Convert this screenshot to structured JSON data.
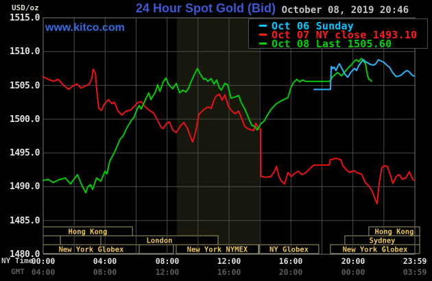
{
  "header": {
    "unit_label": "USD/oz",
    "title": "24 Hour Spot Gold (Bid)",
    "datetime": "October 08, 2019 20:46",
    "watermark": "www.kitco.com"
  },
  "legend": {
    "items": [
      {
        "label": "Oct 06 Sunday",
        "color": "#00c8ff"
      },
      {
        "label": "Oct 07 NY close 1493.10",
        "color": "#ff1a1a"
      },
      {
        "label": "Oct 08 Last 1505.60",
        "color": "#00d300"
      }
    ]
  },
  "axes": {
    "ny_row_label": "NY Time",
    "gmt_row_label": "GMT",
    "y_ticks": [
      "1515.0",
      "1510.0",
      "1505.0",
      "1500.0",
      "1495.0",
      "1490.0",
      "1485.0",
      "1480.0"
    ],
    "x_ticks": [
      {
        "t": 0,
        "ny": "00:00",
        "gmt": "04:00"
      },
      {
        "t": 4,
        "ny": "04:00",
        "gmt": "08:00"
      },
      {
        "t": 8,
        "ny": "08:00",
        "gmt": "12:00"
      },
      {
        "t": 12,
        "ny": "12:00",
        "gmt": "16:00"
      },
      {
        "t": 16,
        "ny": "16:00",
        "gmt": "20:00"
      },
      {
        "t": 20,
        "ny": "20:00",
        "gmt": "00:00"
      },
      {
        "t": 23.983,
        "ny": "23:59",
        "gmt": "03:59"
      }
    ]
  },
  "colors": {
    "grid": "#4c4c4c",
    "plot_border": "#787878",
    "band": "#17170d",
    "session_border": "#a09a68",
    "session_label": "#e8c44e",
    "session_fill": "#000000"
  },
  "sessions": {
    "rows": [
      [
        {
          "label": "Hong Kong",
          "start": 0,
          "end": 5.76
        },
        {
          "label": "Hong Kong",
          "start": 21.03,
          "end": 24.31
        }
      ],
      [
        {
          "label": "",
          "start": 0,
          "end": 1.11
        },
        {
          "label": "",
          "start": 1.11,
          "end": 3.72
        },
        {
          "label": "London",
          "start": 3.72,
          "end": 11.29
        },
        {
          "label": "Sydney",
          "start": 19.48,
          "end": 24.31
        }
      ],
      [
        {
          "label": "New York Globex",
          "start": 0,
          "end": 6.2
        },
        {
          "label": "",
          "start": 6.2,
          "end": 8.41
        },
        {
          "label": "New York NYMEX",
          "start": 8.59,
          "end": 13.9
        },
        {
          "label": "NY Globex",
          "start": 13.95,
          "end": 17.8
        },
        {
          "label": "New York Globex",
          "start": 18.55,
          "end": 24.31
        }
      ]
    ]
  },
  "chart_data": {
    "type": "line",
    "title": "24 Hour Spot Gold (Bid)",
    "x_unit": "hours, NY time",
    "x_range": [
      0,
      24
    ],
    "y_range": [
      1480,
      1515
    ],
    "y_tick_step": 5,
    "x_grid_step_hours": 2,
    "grid": true,
    "legend_position": "top-right",
    "nymex_floor_band_hours": [
      8.63,
      13.95
    ],
    "series": [
      {
        "name": "Oct 07",
        "ny_close": 1493.1,
        "color": "#ee1111",
        "points": [
          [
            0,
            1506.3
          ],
          [
            0.31,
            1505.9
          ],
          [
            0.66,
            1505.6
          ],
          [
            0.97,
            1505.9
          ],
          [
            1.28,
            1505.1
          ],
          [
            1.64,
            1504.4
          ],
          [
            1.9,
            1504.9
          ],
          [
            2.17,
            1505.2
          ],
          [
            2.44,
            1504.6
          ],
          [
            2.7,
            1504.9
          ],
          [
            2.97,
            1505.2
          ],
          [
            3.14,
            1506.0
          ],
          [
            3.23,
            1507.4
          ],
          [
            3.37,
            1506.8
          ],
          [
            3.45,
            1504.5
          ],
          [
            3.59,
            1501.6
          ],
          [
            3.76,
            1501.3
          ],
          [
            3.94,
            1502.2
          ],
          [
            4.21,
            1502.9
          ],
          [
            4.43,
            1502.3
          ],
          [
            4.6,
            1502.5
          ],
          [
            4.83,
            1501.2
          ],
          [
            5.09,
            1500.6
          ],
          [
            5.36,
            1501.2
          ],
          [
            5.62,
            1501.3
          ],
          [
            5.89,
            1501.9
          ],
          [
            6.07,
            1502.4
          ],
          [
            6.33,
            1502.6
          ],
          [
            6.6,
            1501.8
          ],
          [
            6.86,
            1501.3
          ],
          [
            7.13,
            1500.9
          ],
          [
            7.39,
            1499.8
          ],
          [
            7.62,
            1498.8
          ],
          [
            7.75,
            1498.6
          ],
          [
            7.97,
            1499.4
          ],
          [
            8.15,
            1499.6
          ],
          [
            8.37,
            1498.4
          ],
          [
            8.59,
            1498.0
          ],
          [
            8.86,
            1499.0
          ],
          [
            9.08,
            1499.5
          ],
          [
            9.3,
            1498.7
          ],
          [
            9.48,
            1497.6
          ],
          [
            9.65,
            1496.6
          ],
          [
            9.83,
            1498.0
          ],
          [
            10.05,
            1500.7
          ],
          [
            10.36,
            1501.4
          ],
          [
            10.63,
            1501.8
          ],
          [
            10.85,
            1501.6
          ],
          [
            11.03,
            1502.8
          ],
          [
            11.16,
            1503.4
          ],
          [
            11.38,
            1503.7
          ],
          [
            11.56,
            1502.8
          ],
          [
            11.73,
            1503.6
          ],
          [
            11.96,
            1501.9
          ],
          [
            12.18,
            1501.2
          ],
          [
            12.4,
            1500.8
          ],
          [
            12.62,
            1501.2
          ],
          [
            12.84,
            1500.0
          ],
          [
            13.02,
            1498.9
          ],
          [
            13.28,
            1498.5
          ],
          [
            13.59,
            1498.3
          ],
          [
            13.73,
            1499.4
          ],
          [
            13.9,
            1498.6
          ],
          [
            14.04,
            1498.5
          ],
          [
            14.06,
            1491.5
          ],
          [
            14.39,
            1491.4
          ],
          [
            14.7,
            1491.5
          ],
          [
            14.92,
            1492.2
          ],
          [
            15.06,
            1493.0
          ],
          [
            15.23,
            1491.5
          ],
          [
            15.36,
            1490.9
          ],
          [
            15.59,
            1490.4
          ],
          [
            15.81,
            1492.1
          ],
          [
            16.03,
            1491.5
          ],
          [
            16.25,
            1492.0
          ],
          [
            16.47,
            1492.3
          ],
          [
            16.69,
            1491.8
          ],
          [
            16.92,
            1492.0
          ],
          [
            17.14,
            1492.5
          ],
          [
            17.36,
            1493.0
          ],
          [
            17.49,
            1493.2
          ],
          [
            18.46,
            1493.2
          ],
          [
            18.55,
            1494.0
          ],
          [
            18.91,
            1494.2
          ],
          [
            19.22,
            1494.0
          ],
          [
            19.35,
            1493.1
          ],
          [
            19.57,
            1492.5
          ],
          [
            19.79,
            1492.1
          ],
          [
            20.06,
            1492.4
          ],
          [
            20.32,
            1492.0
          ],
          [
            20.54,
            1491.9
          ],
          [
            20.68,
            1491.3
          ],
          [
            20.81,
            1490.6
          ],
          [
            21.03,
            1490.1
          ],
          [
            21.25,
            1489.3
          ],
          [
            21.43,
            1488.2
          ],
          [
            21.56,
            1487.5
          ],
          [
            21.7,
            1490.6
          ],
          [
            21.87,
            1492.8
          ],
          [
            22.01,
            1493.1
          ],
          [
            22.23,
            1493.0
          ],
          [
            22.45,
            1491.5
          ],
          [
            22.58,
            1490.5
          ],
          [
            22.8,
            1491.5
          ],
          [
            22.98,
            1491.8
          ],
          [
            23.2,
            1491.1
          ],
          [
            23.42,
            1491.3
          ],
          [
            23.64,
            1492.2
          ],
          [
            23.86,
            1491.1
          ],
          [
            23.98,
            1490.9
          ]
        ]
      },
      {
        "name": "Oct 08",
        "last": 1505.6,
        "color": "#00cc00",
        "points": [
          [
            0,
            1490.9
          ],
          [
            0.31,
            1491.1
          ],
          [
            0.66,
            1490.6
          ],
          [
            0.97,
            1491.0
          ],
          [
            1.42,
            1491.3
          ],
          [
            1.77,
            1490.4
          ],
          [
            2.08,
            1491.4
          ],
          [
            2.21,
            1491.8
          ],
          [
            2.52,
            1490.1
          ],
          [
            2.75,
            1489.1
          ],
          [
            2.88,
            1490.0
          ],
          [
            3.06,
            1490.3
          ],
          [
            3.19,
            1489.6
          ],
          [
            3.45,
            1491.3
          ],
          [
            3.72,
            1490.8
          ],
          [
            3.99,
            1492.3
          ],
          [
            4.12,
            1491.9
          ],
          [
            4.3,
            1493.8
          ],
          [
            4.47,
            1494.5
          ],
          [
            4.6,
            1495.1
          ],
          [
            4.74,
            1495.8
          ],
          [
            4.96,
            1497.0
          ],
          [
            5.18,
            1497.6
          ],
          [
            5.36,
            1498.5
          ],
          [
            5.53,
            1499.2
          ],
          [
            5.71,
            1499.9
          ],
          [
            5.85,
            1500.2
          ],
          [
            6.07,
            1501.5
          ],
          [
            6.2,
            1502.0
          ],
          [
            6.33,
            1501.5
          ],
          [
            6.64,
            1503.1
          ],
          [
            6.82,
            1503.9
          ],
          [
            6.95,
            1502.9
          ],
          [
            7.26,
            1504.1
          ],
          [
            7.39,
            1505.1
          ],
          [
            7.53,
            1504.1
          ],
          [
            7.75,
            1505.5
          ],
          [
            7.93,
            1506.1
          ],
          [
            8.06,
            1505.3
          ],
          [
            8.19,
            1504.9
          ],
          [
            8.37,
            1504.5
          ],
          [
            8.59,
            1505.3
          ],
          [
            8.81,
            1503.9
          ],
          [
            9.03,
            1504.3
          ],
          [
            9.21,
            1504.0
          ],
          [
            9.39,
            1504.6
          ],
          [
            9.56,
            1505.6
          ],
          [
            9.74,
            1506.5
          ],
          [
            9.96,
            1507.5
          ],
          [
            10.14,
            1506.7
          ],
          [
            10.36,
            1505.9
          ],
          [
            10.49,
            1506.0
          ],
          [
            10.63,
            1505.6
          ],
          [
            10.85,
            1506.0
          ],
          [
            11.03,
            1505.2
          ],
          [
            11.2,
            1505.8
          ],
          [
            11.38,
            1504.6
          ],
          [
            11.51,
            1504.3
          ],
          [
            11.73,
            1505.3
          ],
          [
            11.91,
            1505.1
          ],
          [
            12.13,
            1503.1
          ],
          [
            12.4,
            1503.3
          ],
          [
            12.62,
            1503.5
          ],
          [
            12.8,
            1502.4
          ],
          [
            13.02,
            1501.5
          ],
          [
            13.24,
            1500.3
          ],
          [
            13.46,
            1499.1
          ],
          [
            13.68,
            1498.9
          ],
          [
            13.82,
            1498.4
          ],
          [
            14.04,
            1499.3
          ],
          [
            14.26,
            1499.7
          ],
          [
            14.48,
            1500.6
          ],
          [
            14.7,
            1501.4
          ],
          [
            15.01,
            1502.2
          ],
          [
            15.28,
            1502.6
          ],
          [
            15.54,
            1502.9
          ],
          [
            15.81,
            1503.2
          ],
          [
            15.99,
            1504.6
          ],
          [
            16.16,
            1505.4
          ],
          [
            16.38,
            1505.9
          ],
          [
            16.56,
            1505.5
          ],
          [
            16.74,
            1505.8
          ],
          [
            16.92,
            1505.6
          ],
          [
            17.27,
            1505.6
          ],
          [
            18.46,
            1505.6
          ],
          [
            18.55,
            1505.7
          ],
          [
            18.69,
            1506.3
          ],
          [
            18.86,
            1506.6
          ],
          [
            19,
            1506.9
          ],
          [
            19.13,
            1506.7
          ],
          [
            19.26,
            1506.4
          ],
          [
            19.44,
            1506.9
          ],
          [
            19.66,
            1507.5
          ],
          [
            19.88,
            1508.0
          ],
          [
            20.1,
            1508.6
          ],
          [
            20.24,
            1508.8
          ],
          [
            20.37,
            1508.5
          ],
          [
            20.55,
            1509.0
          ],
          [
            20.68,
            1508.6
          ],
          [
            20.81,
            1508.2
          ],
          [
            20.94,
            1506.5
          ],
          [
            21.03,
            1505.9
          ],
          [
            21.12,
            1505.8
          ],
          [
            21.21,
            1505.6
          ]
        ]
      },
      {
        "name": "Oct 06 Sunday",
        "color": "#29b6f6",
        "points": [
          [
            17.49,
            1504.4
          ],
          [
            18.55,
            1504.4
          ],
          [
            18.6,
            1507.8
          ],
          [
            18.69,
            1507.5
          ],
          [
            18.78,
            1507.7
          ],
          [
            18.91,
            1507.2
          ],
          [
            19.04,
            1507.9
          ],
          [
            19.13,
            1508.2
          ],
          [
            19.26,
            1507.6
          ],
          [
            19.48,
            1506.7
          ],
          [
            19.66,
            1506.2
          ],
          [
            19.88,
            1507.0
          ],
          [
            20.1,
            1507.5
          ],
          [
            20.24,
            1507.2
          ],
          [
            20.37,
            1507.9
          ],
          [
            20.59,
            1508.6
          ],
          [
            20.68,
            1508.8
          ],
          [
            20.81,
            1508.5
          ],
          [
            20.99,
            1508.3
          ],
          [
            21.12,
            1508.1
          ],
          [
            21.34,
            1508.0
          ],
          [
            21.47,
            1508.2
          ],
          [
            21.65,
            1508.8
          ],
          [
            21.83,
            1508.6
          ],
          [
            22.01,
            1508.4
          ],
          [
            22.18,
            1508.0
          ],
          [
            22.36,
            1507.7
          ],
          [
            22.54,
            1507.0
          ],
          [
            22.67,
            1506.6
          ],
          [
            22.8,
            1506.3
          ],
          [
            22.98,
            1506.4
          ],
          [
            23.11,
            1506.5
          ],
          [
            23.29,
            1506.9
          ],
          [
            23.47,
            1507.2
          ],
          [
            23.64,
            1507.0
          ],
          [
            23.78,
            1506.6
          ],
          [
            23.91,
            1506.4
          ],
          [
            23.98,
            1506.4
          ]
        ]
      }
    ]
  }
}
